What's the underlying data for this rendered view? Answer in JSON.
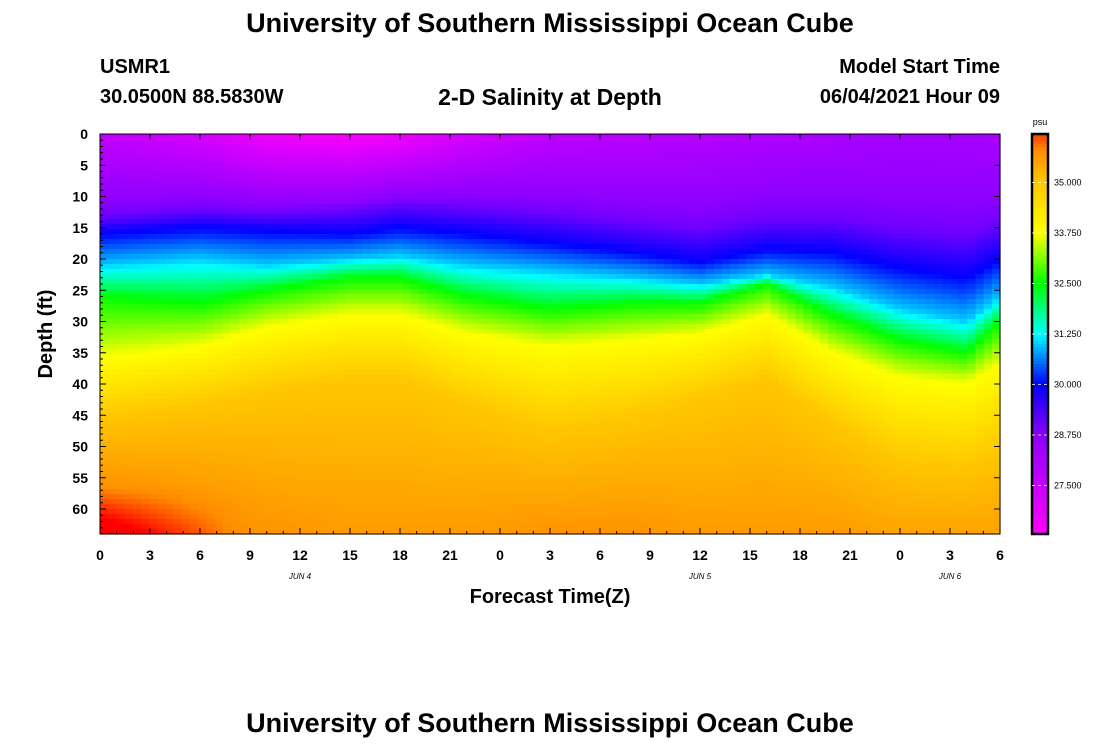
{
  "header": {
    "title": "University of Southern Mississippi Ocean Cube",
    "footer_title": "University of Southern Mississippi Ocean Cube",
    "station_id": "USMR1",
    "station_location": "30.0500N  88.5830W",
    "plot_title": "2-D Salinity at Depth",
    "model_start_label": "Model Start Time",
    "model_start_time": "06/04/2021 Hour 09"
  },
  "chart_data": {
    "type": "heatmap",
    "title": "2-D Salinity at Depth",
    "xlabel": "Forecast Time(Z)",
    "ylabel": "Depth (ft)",
    "x_ticks": [
      "0",
      "3",
      "6",
      "9",
      "12",
      "15",
      "18",
      "21",
      "0",
      "3",
      "6",
      "9",
      "12",
      "15",
      "18",
      "21",
      "0",
      "3",
      "6"
    ],
    "x_range_hours": [
      0,
      54
    ],
    "date_labels": [
      {
        "label": "JUN 4",
        "hour": 12
      },
      {
        "label": "JUN 5",
        "hour": 36
      },
      {
        "label": "JUN 6",
        "hour": 51
      }
    ],
    "y_ticks": [
      0,
      5,
      10,
      15,
      20,
      25,
      30,
      35,
      40,
      45,
      50,
      55,
      60
    ],
    "y_range": [
      0,
      64
    ],
    "colorbar": {
      "unit": "psu",
      "min": 26.3,
      "max": 36.2,
      "ticks": [
        "35.000",
        "33.750",
        "32.500",
        "31.250",
        "30.000",
        "28.750",
        "27.500"
      ],
      "tick_values": [
        35.0,
        33.75,
        32.5,
        31.25,
        30.0,
        28.75,
        27.5
      ]
    },
    "isopleths": {
      "hours": [
        0,
        6,
        10,
        15,
        18,
        22,
        27,
        32,
        36,
        40,
        44,
        48,
        52,
        54
      ],
      "depth_29_psu": [
        13,
        12,
        12.5,
        12,
        11,
        11.5,
        12.5,
        14,
        15,
        13.5,
        13.5,
        15,
        16,
        14
      ],
      "depth_30_psu": [
        16,
        15,
        15.5,
        16,
        15,
        16,
        17.5,
        19,
        20.5,
        18.5,
        19,
        21.5,
        23,
        20
      ],
      "depth_31_psu": [
        21,
        20,
        21,
        20,
        19.5,
        21,
        22,
        23,
        24,
        22.5,
        24.5,
        28,
        30,
        26
      ],
      "depth_32_5_psu": [
        26,
        27,
        25,
        23,
        23,
        26,
        28,
        27,
        27,
        24,
        29,
        33,
        35,
        30
      ],
      "depth_33_75_psu": [
        36,
        34,
        31,
        29,
        29,
        32,
        34,
        33,
        32,
        29,
        35,
        39,
        40,
        37
      ],
      "depth_35_psu": [
        45,
        43,
        41,
        39,
        39,
        43,
        47,
        45,
        42,
        39,
        46,
        52,
        53,
        50
      ],
      "salinity_surface_psu": [
        27.6,
        27.2,
        26.6,
        26.4,
        26.6,
        27.2,
        27.7,
        27.8,
        27.9,
        28.0,
        28.1,
        28.2,
        28.2,
        28.1
      ],
      "salinity_bottom_psu": [
        36.2,
        35.9,
        35.7,
        35.6,
        35.6,
        35.6,
        35.7,
        35.7,
        35.6,
        35.6,
        35.6,
        35.5,
        35.5,
        35.5
      ]
    }
  }
}
